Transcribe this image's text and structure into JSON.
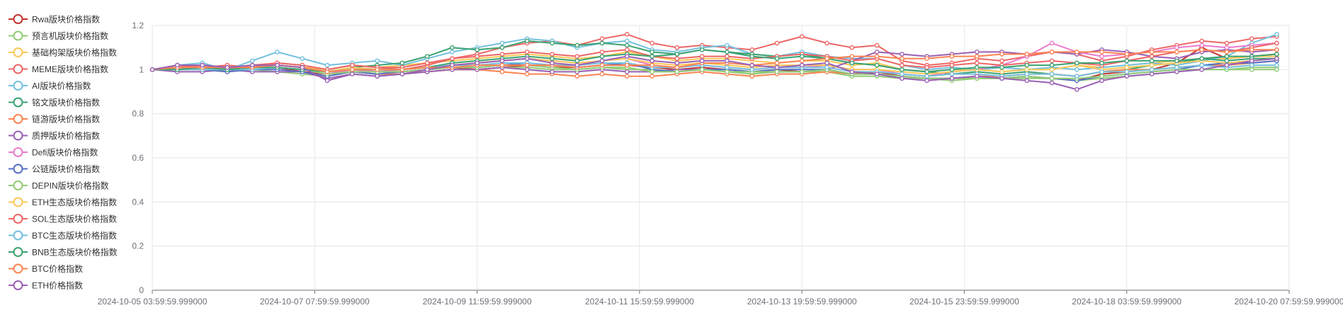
{
  "chart_data": {
    "type": "line",
    "title": "",
    "xlabel": "",
    "ylabel": "",
    "ylim": [
      0,
      1.2
    ],
    "y_ticks": [
      "0",
      "0.2",
      "0.4",
      "0.6",
      "0.8",
      "1",
      "1.2"
    ],
    "x_range": [
      "2024-10-05 03:59:59.999000",
      "2024-10-20 07:59:59.999000"
    ],
    "x_ticks": [
      "2024-10-05 03:59:59.999000",
      "2024-10-07 07:59:59.999000",
      "2024-10-09 11:59:59.999000",
      "2024-10-11 15:59:59.999000",
      "2024-10-13 19:59:59.999000",
      "2024-10-15 23:59:59.999000",
      "2024-10-18 03:59:59.999000",
      "2024-10-20 07:59:59.999000"
    ],
    "grid": true,
    "legend_position": "left",
    "x": [
      "2024-10-05 04:00",
      "2024-10-05 12:00",
      "2024-10-05 20:00",
      "2024-10-06 04:00",
      "2024-10-06 12:00",
      "2024-10-06 20:00",
      "2024-10-07 04:00",
      "2024-10-07 12:00",
      "2024-10-07 20:00",
      "2024-10-08 04:00",
      "2024-10-08 12:00",
      "2024-10-08 20:00",
      "2024-10-09 04:00",
      "2024-10-09 12:00",
      "2024-10-09 20:00",
      "2024-10-10 04:00",
      "2024-10-10 12:00",
      "2024-10-10 20:00",
      "2024-10-11 04:00",
      "2024-10-11 12:00",
      "2024-10-11 20:00",
      "2024-10-12 04:00",
      "2024-10-12 12:00",
      "2024-10-12 20:00",
      "2024-10-13 04:00",
      "2024-10-13 12:00",
      "2024-10-13 20:00",
      "2024-10-14 04:00",
      "2024-10-14 12:00",
      "2024-10-14 20:00",
      "2024-10-15 04:00",
      "2024-10-15 12:00",
      "2024-10-15 20:00",
      "2024-10-16 04:00",
      "2024-10-16 12:00",
      "2024-10-16 20:00",
      "2024-10-17 04:00",
      "2024-10-17 12:00",
      "2024-10-17 20:00",
      "2024-10-18 04:00",
      "2024-10-18 12:00",
      "2024-10-18 20:00",
      "2024-10-19 04:00",
      "2024-10-19 12:00",
      "2024-10-19 20:00",
      "2024-10-20 04:00"
    ],
    "series": [
      {
        "name": "Rwa版块价格指数",
        "color": "#c23531",
        "values": [
          1,
          1.01,
          1.01,
          1.0,
          1.0,
          1.01,
          0.99,
          0.98,
          1.0,
          0.99,
          0.99,
          1.0,
          1.01,
          1.0,
          1.01,
          1.02,
          1.01,
          1.01,
          1.02,
          1.02,
          1.01,
          1.0,
          1.01,
          1.0,
          0.99,
          1.0,
          0.99,
          1.0,
          0.98,
          0.99,
          0.97,
          0.96,
          0.96,
          0.97,
          0.96,
          0.97,
          0.96,
          0.95,
          0.98,
          0.99,
          1.0,
          1.03,
          1.1,
          1.05,
          1.06,
          1.07
        ]
      },
      {
        "name": "预言机版块价格指数",
        "color": "#91cc75",
        "values": [
          1,
          1.0,
          1.01,
          1.0,
          1.0,
          0.99,
          0.98,
          0.97,
          0.99,
          0.98,
          0.98,
          0.99,
          1.0,
          1.0,
          1.01,
          1.01,
          1.0,
          1.0,
          1.01,
          1.0,
          1.0,
          0.99,
          1.0,
          0.99,
          0.98,
          0.99,
          0.99,
          0.99,
          0.97,
          0.97,
          0.96,
          0.96,
          0.95,
          0.96,
          0.96,
          0.96,
          0.96,
          0.95,
          0.96,
          0.97,
          0.98,
          0.99,
          1.0,
          1.0,
          1.01,
          1.01
        ]
      },
      {
        "name": "基础构架版块价格指数",
        "color": "#fac858",
        "values": [
          1,
          1.01,
          1.02,
          1.01,
          1.02,
          1.02,
          1.01,
          1.0,
          1.02,
          1.01,
          1.02,
          1.03,
          1.04,
          1.05,
          1.06,
          1.07,
          1.06,
          1.05,
          1.06,
          1.08,
          1.06,
          1.04,
          1.05,
          1.05,
          1.04,
          1.03,
          1.04,
          1.04,
          1.02,
          1.03,
          1.0,
          0.99,
          1.0,
          1.0,
          0.99,
          1.0,
          1.0,
          1.02,
          1.01,
          1.02,
          1.03,
          1.04,
          1.05,
          1.05,
          1.06,
          1.06
        ]
      },
      {
        "name": "MEME版块价格指数",
        "color": "#ee6666",
        "values": [
          1,
          1.02,
          1.01,
          1.02,
          1.01,
          1.03,
          1.02,
          1.0,
          1.02,
          1.01,
          1.0,
          1.02,
          1.05,
          1.07,
          1.1,
          1.12,
          1.13,
          1.11,
          1.14,
          1.16,
          1.12,
          1.1,
          1.11,
          1.1,
          1.09,
          1.12,
          1.15,
          1.12,
          1.1,
          1.11,
          1.04,
          1.02,
          1.03,
          1.05,
          1.04,
          1.06,
          1.08,
          1.07,
          1.04,
          1.06,
          1.09,
          1.11,
          1.13,
          1.12,
          1.14,
          1.15
        ]
      },
      {
        "name": "AI版块价格指数",
        "color": "#73c0de",
        "values": [
          1,
          1.02,
          1.03,
          1.0,
          1.04,
          1.08,
          1.05,
          1.02,
          1.03,
          1.04,
          1.02,
          1.05,
          1.08,
          1.1,
          1.12,
          1.14,
          1.13,
          1.1,
          1.12,
          1.13,
          1.09,
          1.08,
          1.1,
          1.11,
          1.07,
          1.06,
          1.08,
          1.06,
          1.05,
          1.05,
          1.02,
          1.0,
          1.01,
          1.0,
          1.01,
          1.0,
          1.01,
          1.0,
          1.01,
          1.02,
          1.03,
          1.02,
          1.04,
          1.06,
          1.12,
          1.16
        ]
      },
      {
        "name": "铭文版块价格指数",
        "color": "#3ba272",
        "values": [
          1,
          1.01,
          1.01,
          1.0,
          1.01,
          1.02,
          1.01,
          0.99,
          1.01,
          1.02,
          1.03,
          1.06,
          1.1,
          1.09,
          1.1,
          1.13,
          1.12,
          1.11,
          1.12,
          1.11,
          1.08,
          1.07,
          1.09,
          1.08,
          1.07,
          1.06,
          1.07,
          1.05,
          1.03,
          1.02,
          1.0,
          0.99,
          0.98,
          0.99,
          0.98,
          0.99,
          0.98,
          0.97,
          0.99,
          1.0,
          1.02,
          1.03,
          1.05,
          1.06,
          1.06,
          1.07
        ]
      },
      {
        "name": "链游版块价格指数",
        "color": "#fc8452",
        "values": [
          1,
          1.0,
          1.0,
          0.99,
          1.0,
          1.01,
          1.0,
          0.98,
          0.99,
          0.98,
          0.98,
          0.99,
          1.0,
          1.0,
          0.99,
          0.98,
          0.98,
          0.97,
          0.98,
          0.97,
          0.97,
          0.98,
          0.99,
          0.98,
          0.97,
          0.98,
          0.98,
          0.99,
          0.98,
          0.98,
          0.97,
          0.96,
          0.96,
          0.97,
          0.97,
          0.98,
          0.98,
          0.97,
          0.99,
          1.0,
          1.0,
          1.01,
          1.02,
          1.02,
          1.03,
          1.04
        ]
      },
      {
        "name": "质押版块价格指数",
        "color": "#9a60b4",
        "values": [
          1,
          0.99,
          0.99,
          1.0,
          0.99,
          0.99,
          0.99,
          0.96,
          0.98,
          0.97,
          0.98,
          0.99,
          1.0,
          1.0,
          1.01,
          1.0,
          0.99,
          0.99,
          1.0,
          0.99,
          0.99,
          1.0,
          1.0,
          1.0,
          0.99,
          0.99,
          0.99,
          1.0,
          1.04,
          1.08,
          1.07,
          1.06,
          1.07,
          1.08,
          1.08,
          1.07,
          1.08,
          1.07,
          1.09,
          1.08,
          1.06,
          1.05,
          1.08,
          1.09,
          1.08,
          1.09
        ]
      },
      {
        "name": "Defi版块价格指数",
        "color": "#ea7ccc",
        "values": [
          1,
          1.01,
          1.0,
          1.01,
          1.0,
          1.01,
          1.0,
          0.98,
          1.0,
          0.99,
          1.0,
          1.01,
          1.02,
          1.03,
          1.04,
          1.05,
          1.04,
          1.03,
          1.04,
          1.05,
          1.02,
          1.01,
          1.02,
          1.01,
          1.0,
          1.01,
          1.01,
          1.02,
          1.0,
          1.0,
          0.98,
          0.97,
          0.99,
          1.0,
          1.02,
          1.06,
          1.12,
          1.08,
          1.06,
          1.07,
          1.08,
          1.1,
          1.11,
          1.1,
          1.11,
          1.12
        ]
      },
      {
        "name": "公链版块价格指数",
        "color": "#5470c6",
        "values": [
          1,
          1.0,
          1.0,
          0.99,
          1.0,
          1.0,
          0.99,
          0.97,
          0.99,
          0.98,
          0.99,
          1.0,
          1.01,
          1.01,
          1.02,
          1.03,
          1.02,
          1.01,
          1.02,
          1.03,
          1.0,
          0.99,
          1.0,
          1.0,
          0.99,
          1.0,
          1.0,
          1.0,
          0.98,
          0.98,
          0.97,
          0.96,
          0.96,
          0.97,
          0.96,
          0.97,
          0.96,
          0.95,
          0.97,
          0.98,
          0.99,
          1.0,
          1.02,
          1.03,
          1.03,
          1.04
        ]
      },
      {
        "name": "DEPIN版块价格指数",
        "color": "#91cc75",
        "values": [
          1,
          1.0,
          1.0,
          1.0,
          1.0,
          1.01,
          1.0,
          0.98,
          0.99,
          0.99,
          0.99,
          1.0,
          1.01,
          1.01,
          1.02,
          1.02,
          1.01,
          1.0,
          1.01,
          1.01,
          0.99,
          0.99,
          1.0,
          0.99,
          0.99,
          0.99,
          0.99,
          1.0,
          0.98,
          0.98,
          0.97,
          0.96,
          0.96,
          0.96,
          0.96,
          0.97,
          0.96,
          0.96,
          0.97,
          0.98,
          0.99,
          1.0,
          1.0,
          1.0,
          1.0,
          1.0
        ]
      },
      {
        "name": "ETH生态版块价格指数",
        "color": "#fac858",
        "values": [
          1,
          1.01,
          1.01,
          1.01,
          1.02,
          1.02,
          1.01,
          0.99,
          1.01,
          1.0,
          1.0,
          1.01,
          1.02,
          1.03,
          1.04,
          1.05,
          1.04,
          1.03,
          1.04,
          1.05,
          1.03,
          1.02,
          1.03,
          1.02,
          1.01,
          1.02,
          1.02,
          1.02,
          1.0,
          1.0,
          0.99,
          0.98,
          0.99,
          1.0,
          0.99,
          1.0,
          1.0,
          1.02,
          1.0,
          1.01,
          1.02,
          1.03,
          1.04,
          1.03,
          1.04,
          1.05
        ]
      },
      {
        "name": "SOL生态版块价格指数",
        "color": "#ee6666",
        "values": [
          1,
          1.01,
          1.02,
          1.01,
          1.02,
          1.03,
          1.02,
          1.0,
          1.02,
          1.01,
          1.01,
          1.03,
          1.05,
          1.06,
          1.07,
          1.08,
          1.07,
          1.06,
          1.08,
          1.09,
          1.06,
          1.05,
          1.06,
          1.06,
          1.05,
          1.06,
          1.07,
          1.06,
          1.04,
          1.05,
          1.02,
          1.01,
          1.02,
          1.03,
          1.02,
          1.03,
          1.04,
          1.03,
          1.02,
          1.04,
          1.06,
          1.08,
          1.09,
          1.08,
          1.1,
          1.12
        ]
      },
      {
        "name": "BTC生态版块价格指数",
        "color": "#73c0de",
        "values": [
          1,
          1.0,
          1.0,
          1.0,
          1.0,
          1.01,
          1.0,
          0.99,
          1.0,
          1.0,
          1.0,
          1.01,
          1.02,
          1.02,
          1.03,
          1.03,
          1.02,
          1.02,
          1.03,
          1.03,
          1.01,
          1.01,
          1.02,
          1.01,
          1.0,
          1.01,
          1.01,
          1.01,
          0.99,
          0.99,
          0.98,
          0.97,
          0.98,
          0.98,
          0.97,
          0.98,
          0.98,
          0.97,
          0.99,
          0.99,
          1.0,
          1.01,
          1.02,
          1.01,
          1.02,
          1.02
        ]
      },
      {
        "name": "BNB生态版块价格指数",
        "color": "#3ba272",
        "values": [
          1,
          1.0,
          1.01,
          1.0,
          1.01,
          1.01,
          1.0,
          0.99,
          1.0,
          1.0,
          1.0,
          1.01,
          1.03,
          1.04,
          1.05,
          1.06,
          1.05,
          1.04,
          1.06,
          1.07,
          1.06,
          1.07,
          1.09,
          1.08,
          1.06,
          1.05,
          1.06,
          1.05,
          1.03,
          1.02,
          1.0,
          0.99,
          1.0,
          1.01,
          1.01,
          1.02,
          1.02,
          1.03,
          1.03,
          1.04,
          1.04,
          1.04,
          1.05,
          1.04,
          1.05,
          1.05
        ]
      },
      {
        "name": "BTC价格指数",
        "color": "#fc8452",
        "values": [
          1,
          1.01,
          1.01,
          1.01,
          1.01,
          1.02,
          1.01,
          0.99,
          1.0,
          1.0,
          1.0,
          1.01,
          1.01,
          1.02,
          1.02,
          1.02,
          1.02,
          1.01,
          1.02,
          1.02,
          1.02,
          1.01,
          1.03,
          1.03,
          1.02,
          1.03,
          1.04,
          1.05,
          1.06,
          1.06,
          1.05,
          1.05,
          1.06,
          1.06,
          1.07,
          1.07,
          1.08,
          1.08,
          1.08,
          1.07,
          1.08,
          1.08,
          1.09,
          1.08,
          1.09,
          1.09
        ]
      },
      {
        "name": "ETH价格指数",
        "color": "#9a60b4",
        "values": [
          1,
          1.02,
          1.02,
          1.01,
          1.02,
          1.02,
          1.01,
          0.95,
          0.98,
          0.97,
          0.98,
          1.0,
          1.02,
          1.03,
          1.04,
          1.05,
          1.03,
          1.02,
          1.04,
          1.06,
          1.04,
          1.03,
          1.04,
          1.04,
          1.02,
          1.01,
          1.02,
          1.03,
          0.99,
          0.98,
          0.96,
          0.95,
          0.96,
          0.97,
          0.96,
          0.95,
          0.94,
          0.91,
          0.95,
          0.97,
          0.98,
          0.99,
          1.0,
          1.02,
          1.04,
          1.05
        ]
      }
    ]
  }
}
